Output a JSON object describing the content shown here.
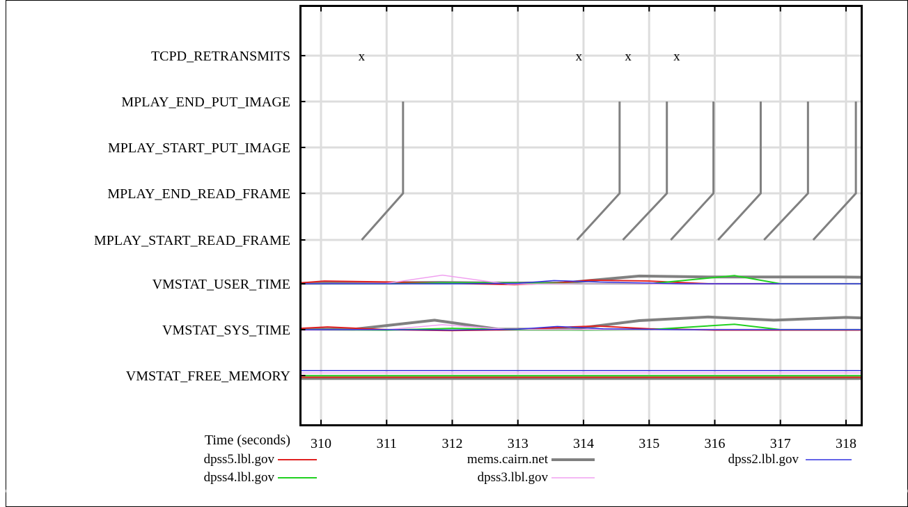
{
  "chart_data": {
    "type": "line",
    "xlabel": "Time (seconds)",
    "xlim": [
      309.67,
      318.25
    ],
    "x_ticks": [
      "310",
      "311",
      "312",
      "313",
      "314",
      "315",
      "316",
      "317",
      "318"
    ],
    "y_categories": [
      "TCPD_RETRANSMITS",
      "MPLAY_END_PUT_IMAGE",
      "MPLAY_START_PUT_IMAGE",
      "MPLAY_END_READ_FRAME",
      "MPLAY_START_READ_FRAME",
      "VMSTAT_USER_TIME",
      "VMSTAT_SYS_TIME",
      "VMSTAT_FREE_MEMORY"
    ],
    "grid": true,
    "legend_position": "bottom",
    "colors": {
      "dpss5.lbl.gov": "#e02020",
      "mems.cairn.net": "#808080",
      "dpss2.lbl.gov": "#3030e0",
      "dpss4.lbl.gov": "#20d020",
      "dpss3.lbl.gov": "#f0a0f0",
      "grid": "#dddddd"
    },
    "legend": [
      {
        "name": "dpss5.lbl.gov",
        "color": "#e02020",
        "width": 2
      },
      {
        "name": "mems.cairn.net",
        "color": "#808080",
        "width": 4
      },
      {
        "name": "dpss2.lbl.gov",
        "color": "#3030e0",
        "width": 1.5
      },
      {
        "name": "dpss4.lbl.gov",
        "color": "#20d020",
        "width": 2
      },
      {
        "name": "dpss3.lbl.gov",
        "color": "#f0a0f0",
        "width": 1.5
      }
    ],
    "retransmits": {
      "marker": "x",
      "times": [
        310.62,
        313.93,
        314.68,
        315.42
      ]
    },
    "frames": [
      {
        "start": 310.62,
        "end_read": 311.25,
        "start_put": 311.25,
        "end_put": 311.25
      },
      {
        "start": 313.9,
        "end_read": 314.55,
        "start_put": 314.55,
        "end_put": 314.55
      },
      {
        "start": 314.6,
        "end_read": 315.27,
        "start_put": 315.27,
        "end_put": 315.27
      },
      {
        "start": 315.33,
        "end_read": 315.98,
        "start_put": 315.98,
        "end_put": 315.98
      },
      {
        "start": 316.05,
        "end_read": 316.7,
        "start_put": 316.7,
        "end_put": 316.7
      },
      {
        "start": 316.75,
        "end_read": 317.42,
        "start_put": 317.42,
        "end_put": 317.42
      },
      {
        "start": 317.5,
        "end_read": 318.15,
        "start_put": 318.15,
        "end_put": 318.15
      }
    ],
    "series": [
      {
        "name": "mems.cairn.net",
        "user_time": {
          "x": [
            309.67,
            310.5,
            311.8,
            312.8,
            313.7,
            314.85,
            315.9,
            316.9,
            317.9,
            318.25
          ],
          "y": [
            0.05,
            0.1,
            0.15,
            0.08,
            0.1,
            0.85,
            0.75,
            0.75,
            0.75,
            0.72
          ]
        },
        "sys_time": {
          "x": [
            309.67,
            310.5,
            311.73,
            312.7,
            313.8,
            314.85,
            315.9,
            316.9,
            318.0,
            318.25
          ],
          "y": [
            0.05,
            0.05,
            1.05,
            0.05,
            0.05,
            1.0,
            1.4,
            1.05,
            1.35,
            1.3
          ]
        },
        "free_memory": {
          "x": [
            309.67,
            318.25
          ],
          "y": [
            -0.5,
            -0.5
          ]
        }
      },
      {
        "name": "dpss5.lbl.gov",
        "user_time": {
          "x": [
            309.67,
            310.05,
            311.0,
            312.0,
            312.95,
            313.6,
            314.1,
            315.0,
            315.9,
            317.0,
            318.25
          ],
          "y": [
            0.1,
            0.3,
            0.2,
            0.05,
            -0.1,
            0.1,
            0.4,
            0.3,
            0.0,
            0.0,
            0.0
          ]
        },
        "sys_time": {
          "x": [
            309.67,
            310.1,
            311.0,
            312.0,
            313.0,
            313.8,
            314.2,
            315.0,
            316.0,
            317.0,
            318.25
          ],
          "y": [
            0.15,
            0.3,
            0.0,
            -0.1,
            0.0,
            0.3,
            0.4,
            0.1,
            -0.05,
            -0.05,
            -0.05
          ]
        },
        "free_memory": {
          "x": [
            309.67,
            318.25
          ],
          "y": [
            -0.3,
            -0.3
          ]
        }
      },
      {
        "name": "dpss4.lbl.gov",
        "user_time": {
          "x": [
            309.67,
            311.0,
            312.0,
            313.0,
            314.0,
            315.0,
            316.3,
            317.0,
            318.25
          ],
          "y": [
            0.0,
            0.0,
            0.1,
            0.1,
            0.0,
            0.0,
            0.9,
            0.0,
            0.0
          ]
        },
        "sys_time": {
          "x": [
            309.67,
            311.0,
            312.0,
            313.0,
            314.0,
            315.0,
            316.3,
            317.0,
            318.25
          ],
          "y": [
            0.0,
            -0.05,
            0.15,
            0.0,
            -0.05,
            0.0,
            0.6,
            0.0,
            0.0
          ]
        },
        "free_memory": {
          "x": [
            309.67,
            318.25
          ],
          "y": [
            -0.02,
            -0.02
          ]
        }
      },
      {
        "name": "dpss3.lbl.gov",
        "user_time": {
          "x": [
            309.67,
            311.0,
            311.85,
            312.85,
            313.9,
            314.9,
            316.0,
            318.25
          ],
          "y": [
            0.0,
            0.05,
            0.95,
            -0.05,
            0.0,
            0.0,
            0.0,
            0.0
          ]
        },
        "sys_time": {
          "x": [
            309.67,
            311.0,
            311.85,
            312.8,
            313.9,
            314.9,
            316.0,
            318.25
          ],
          "y": [
            -0.05,
            0.0,
            0.55,
            0.05,
            0.0,
            0.0,
            0.0,
            0.0
          ]
        },
        "free_memory": {
          "x": [
            309.67,
            318.25
          ],
          "y": [
            0.45,
            0.45
          ]
        }
      },
      {
        "name": "dpss2.lbl.gov",
        "user_time": {
          "x": [
            309.67,
            311.0,
            312.0,
            313.0,
            313.55,
            314.2,
            315.5,
            316.5,
            318.25
          ],
          "y": [
            0.0,
            0.0,
            0.0,
            0.05,
            0.35,
            0.2,
            0.0,
            0.0,
            0.0
          ]
        },
        "sys_time": {
          "x": [
            309.67,
            311.0,
            312.0,
            313.0,
            313.6,
            314.3,
            315.5,
            316.5,
            318.25
          ],
          "y": [
            0.0,
            0.0,
            -0.05,
            0.05,
            0.35,
            0.1,
            0.0,
            0.0,
            0.0
          ]
        },
        "free_memory": {
          "x": [
            309.67,
            318.25
          ],
          "y": [
            0.85,
            0.85
          ]
        }
      }
    ]
  }
}
